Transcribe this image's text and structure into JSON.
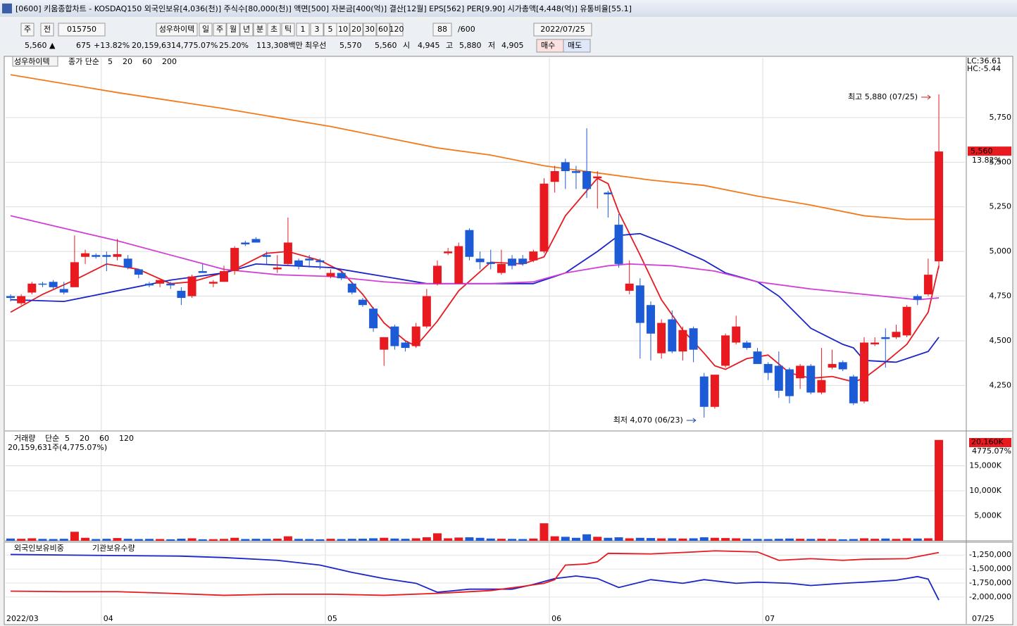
{
  "window": {
    "title": "[0600] 키움종합차트 - KOSDAQ150 외국인보유[4,036(천)] 주식수[80,000(천)] 액면[500] 자본금[400(억)] 결산[12월] EPS[562] PER[9.90] 시가총액[4,448(억)] 유통비율[55.1]",
    "toolbar": [
      "주",
      "전",
      "015750",
      "성우하이텍",
      "일",
      "주",
      "월",
      "년",
      "분",
      "초",
      "틱",
      "1",
      "3",
      "5",
      "10",
      "20",
      "30",
      "60",
      "120",
      "88",
      "/600",
      "2022/07/25"
    ],
    "info": [
      "5,560 ▲",
      "675",
      "+13.82%",
      "20,159,631",
      "4,775.07%",
      "25.20%",
      "113,308백만",
      "최우선",
      "5,570",
      "5,560",
      "시",
      "4,945",
      "고",
      "5,880",
      "저",
      "4,905",
      "매수",
      "매도"
    ]
  },
  "chart_data": [
    {
      "type": "candlestick",
      "stock": "성우하이텍",
      "ma_label": "종가 단순",
      "categories": [
        "2022/03",
        null,
        null,
        null,
        null,
        null,
        null,
        null,
        null,
        "04",
        null,
        null,
        null,
        null,
        null,
        null,
        null,
        null,
        null,
        null,
        null,
        null,
        null,
        null,
        null,
        null,
        null,
        null,
        null,
        null,
        "05",
        null,
        null,
        null,
        null,
        null,
        null,
        null,
        null,
        null,
        null,
        null,
        null,
        null,
        null,
        null,
        null,
        null,
        null,
        null,
        null,
        "06",
        null,
        null,
        null,
        null,
        null,
        null,
        null,
        null,
        null,
        null,
        null,
        null,
        null,
        null,
        null,
        null,
        null,
        null,
        null,
        "07",
        null,
        null,
        null,
        null,
        null,
        null,
        null,
        null,
        null,
        null,
        null,
        null,
        null,
        null,
        null,
        "07/25"
      ],
      "open": [
        4750,
        4710,
        4770,
        4820,
        4830,
        4790,
        4800,
        4970,
        4980,
        4980,
        4970,
        4960,
        4900,
        4820,
        4820,
        4820,
        4780,
        4750,
        4890,
        4820,
        4830,
        4890,
        5050,
        5070,
        4980,
        4900,
        4930,
        4950,
        4960,
        4950,
        4860,
        4880,
        4820,
        4730,
        4680,
        4450,
        4580,
        4490,
        4470,
        4580,
        4820,
        4990,
        4820,
        5120,
        4960,
        4940,
        4880,
        4960,
        4960,
        4950,
        5000,
        5390,
        5500,
        5450,
        5450,
        5410,
        5330,
        5150,
        4780,
        4810,
        4700,
        4430,
        4620,
        4440,
        4570,
        4300,
        4130,
        4360,
        4490,
        4490,
        4440,
        4370,
        4360,
        4340,
        4290,
        4360,
        4210,
        4350,
        4380,
        4300,
        4160,
        4480,
        4520,
        4520,
        4530,
        4750,
        4760,
        4945
      ],
      "high": [
        4760,
        4760,
        4830,
        4830,
        4840,
        4830,
        5090,
        5010,
        4990,
        5000,
        5070,
        4980,
        4900,
        4830,
        4840,
        4830,
        4800,
        4870,
        4930,
        4840,
        4920,
        5030,
        5060,
        5080,
        5000,
        4980,
        5190,
        4960,
        4980,
        4960,
        4900,
        4890,
        4830,
        4740,
        4690,
        4520,
        4590,
        4500,
        4600,
        4790,
        4950,
        5020,
        5050,
        5130,
        5000,
        5010,
        5010,
        4980,
        4980,
        5010,
        5410,
        5480,
        5520,
        5480,
        5690,
        5450,
        5340,
        5210,
        4950,
        4850,
        4720,
        4620,
        4670,
        4580,
        4580,
        4320,
        4310,
        4540,
        4640,
        4500,
        4460,
        4380,
        4440,
        4350,
        4370,
        4370,
        4460,
        4450,
        4390,
        4310,
        4520,
        4520,
        4570,
        4590,
        4700,
        4760,
        4960,
        5880
      ],
      "low": [
        4720,
        4700,
        4760,
        4800,
        4790,
        4760,
        4800,
        4930,
        4960,
        4890,
        4950,
        4900,
        4850,
        4800,
        4800,
        4790,
        4700,
        4740,
        4880,
        4800,
        4830,
        4870,
        5030,
        5050,
        4930,
        4880,
        4920,
        4900,
        4910,
        4900,
        4850,
        4840,
        4760,
        4690,
        4550,
        4360,
        4450,
        4440,
        4460,
        4570,
        4810,
        4980,
        4820,
        4950,
        4900,
        4900,
        4870,
        4900,
        4920,
        4940,
        4990,
        5330,
        5350,
        5350,
        5300,
        5240,
        5190,
        4910,
        4760,
        4400,
        4390,
        4400,
        4430,
        4390,
        4380,
        4070,
        4120,
        4350,
        4480,
        4450,
        4370,
        4280,
        4180,
        4150,
        4230,
        4200,
        4200,
        4340,
        4330,
        4140,
        4150,
        4470,
        4350,
        4510,
        4520,
        4700,
        4750,
        4905
      ],
      "close": [
        4740,
        4750,
        4820,
        4815,
        4800,
        4770,
        4940,
        4990,
        4970,
        4970,
        4985,
        4910,
        4870,
        4810,
        4840,
        4810,
        4740,
        4860,
        4880,
        4830,
        4890,
        5020,
        5040,
        5050,
        4970,
        4910,
        5050,
        4920,
        4950,
        4940,
        4880,
        4850,
        4770,
        4700,
        4570,
        4520,
        4470,
        4460,
        4580,
        4750,
        4920,
        5000,
        5030,
        4970,
        4940,
        4930,
        4930,
        4920,
        4930,
        5000,
        5380,
        5450,
        5450,
        5440,
        5350,
        5420,
        5320,
        4930,
        4820,
        4600,
        4540,
        4600,
        4440,
        4560,
        4450,
        4130,
        4310,
        4530,
        4580,
        4460,
        4370,
        4320,
        4220,
        4190,
        4360,
        4210,
        4280,
        4370,
        4340,
        4150,
        4490,
        4490,
        4510,
        4550,
        4690,
        4730,
        4870,
        5560
      ],
      "up_color": "#e8191f",
      "down_color": "#1d5bd6",
      "series": [
        {
          "name": "5",
          "color": "#e8191f",
          "x": [
            0,
            3,
            6,
            9,
            12,
            15,
            17,
            21,
            24,
            26,
            29,
            31,
            33,
            35,
            37,
            38,
            40,
            42,
            45,
            48,
            50,
            52,
            55,
            56,
            57,
            59,
            61,
            63,
            65,
            66,
            67,
            69,
            71,
            73,
            75,
            77,
            79,
            80,
            82,
            84,
            86,
            87
          ],
          "values": [
            4660,
            4760,
            4840,
            4930,
            4900,
            4820,
            4830,
            4900,
            4990,
            5000,
            4950,
            4890,
            4760,
            4600,
            4500,
            4470,
            4610,
            4780,
            4940,
            4930,
            4970,
            5200,
            5410,
            5380,
            5220,
            4980,
            4730,
            4560,
            4430,
            4360,
            4340,
            4400,
            4420,
            4320,
            4290,
            4300,
            4270,
            4290,
            4380,
            4480,
            4660,
            4920
          ]
        },
        {
          "name": "20",
          "color": "#1a24c8",
          "x": [
            0,
            5,
            10,
            15,
            20,
            23,
            30,
            35,
            39,
            45,
            49,
            52,
            55,
            57,
            59,
            62,
            65,
            67,
            70,
            72,
            75,
            78,
            79,
            80,
            83,
            86,
            87
          ],
          "values": [
            4730,
            4720,
            4780,
            4840,
            4880,
            4930,
            4910,
            4860,
            4820,
            4820,
            4820,
            4880,
            5000,
            5090,
            5100,
            5030,
            4950,
            4880,
            4830,
            4750,
            4570,
            4480,
            4460,
            4390,
            4380,
            4440,
            4520
          ]
        },
        {
          "name": "60",
          "color": "#d23fd6",
          "x": [
            0,
            10,
            20,
            25,
            30,
            35,
            38,
            45,
            49,
            52,
            56,
            58,
            62,
            66,
            70,
            75,
            80,
            85,
            87
          ],
          "values": [
            5200,
            5060,
            4900,
            4870,
            4860,
            4830,
            4820,
            4820,
            4830,
            4880,
            4920,
            4930,
            4920,
            4890,
            4830,
            4790,
            4760,
            4730,
            4740
          ]
        },
        {
          "name": "200",
          "color": "#f27a1a",
          "x": [
            0,
            10,
            20,
            30,
            40,
            45,
            50,
            55,
            60,
            65,
            70,
            75,
            80,
            84,
            87
          ],
          "values": [
            5990,
            5890,
            5800,
            5700,
            5580,
            5540,
            5480,
            5440,
            5400,
            5370,
            5310,
            5260,
            5200,
            5180,
            5180
          ]
        }
      ],
      "ylim": [
        3995,
        6085
      ],
      "yticks": [
        {
          "value": 4250,
          "label": "4,250"
        },
        {
          "value": 4500,
          "label": "4,500"
        },
        {
          "value": 4750,
          "label": "4,750"
        },
        {
          "value": 5000,
          "label": "5,000"
        },
        {
          "value": 5250,
          "label": "5,250"
        },
        {
          "value": 5500,
          "label": "5,500"
        },
        {
          "value": 5750,
          "label": "5,750"
        }
      ],
      "grid": true,
      "annotations": [
        {
          "text": "최고 5,880 (07/25)",
          "index": 87,
          "value": 5880
        },
        {
          "text": "최저 4,070 (06/23)",
          "index": 65,
          "value": 4070
        }
      ],
      "last_label": "5,560",
      "last_change": "13.82%",
      "lc": "LC:36.61",
      "hc": "HC:-5.44"
    },
    {
      "type": "bar",
      "title": "거래량",
      "legend": [
        "단순",
        "5",
        "20",
        "60",
        "120"
      ],
      "summary": "20,159,631주(4,775.07%)",
      "values": [
        450,
        400,
        500,
        380,
        350,
        400,
        1800,
        600,
        350,
        400,
        550,
        400,
        350,
        380,
        350,
        300,
        420,
        500,
        300,
        320,
        380,
        600,
        350,
        400,
        380,
        420,
        900,
        380,
        350,
        300,
        400,
        350,
        400,
        420,
        500,
        600,
        450,
        400,
        500,
        700,
        1500,
        500,
        650,
        700,
        600,
        450,
        400,
        380,
        350,
        450,
        3500,
        900,
        800,
        600,
        1300,
        800,
        600,
        700,
        500,
        600,
        550,
        480,
        500,
        450,
        500,
        700,
        600,
        550,
        500,
        400,
        380,
        350,
        400,
        450,
        400,
        380,
        400,
        350,
        300,
        350,
        500,
        400,
        450,
        380,
        500,
        450,
        500,
        20160
      ],
      "ylim": [
        0,
        21400
      ],
      "yticks": [
        {
          "value": 5000,
          "label": "5,000K"
        },
        {
          "value": 10000,
          "label": "10,000K"
        },
        {
          "value": 15000,
          "label": "15,000K"
        }
      ],
      "last_label": "20,160K",
      "last_change": "4775.07%"
    },
    {
      "type": "line",
      "series": [
        {
          "name": "외국인보유비중",
          "color": "#1a24c8",
          "x": [
            0,
            10,
            16,
            20,
            25,
            29,
            32,
            35,
            38,
            40,
            43,
            47,
            49,
            51,
            53,
            55,
            57,
            60,
            63,
            65,
            68,
            70,
            73,
            75,
            78,
            80,
            83,
            85,
            86,
            87
          ],
          "values": [
            -1240000,
            -1260000,
            -1270000,
            -1295000,
            -1345000,
            -1430000,
            -1560000,
            -1670000,
            -1755000,
            -1915000,
            -1860000,
            -1860000,
            -1775000,
            -1670000,
            -1625000,
            -1670000,
            -1830000,
            -1690000,
            -1755000,
            -1690000,
            -1755000,
            -1735000,
            -1755000,
            -1795000,
            -1755000,
            -1735000,
            -1700000,
            -1635000,
            -1680000,
            -2055000
          ]
        },
        {
          "name": "기관보유수량",
          "color": "#e8191f",
          "x": [
            0,
            5,
            10,
            15,
            20,
            25,
            30,
            35,
            40,
            42,
            45,
            48,
            50,
            51,
            52,
            54,
            55,
            56,
            60,
            64,
            66,
            70,
            72,
            75,
            78,
            80,
            84,
            87
          ],
          "values": [
            -1895000,
            -1905000,
            -1905000,
            -1935000,
            -1970000,
            -1950000,
            -1950000,
            -1970000,
            -1935000,
            -1915000,
            -1885000,
            -1810000,
            -1755000,
            -1690000,
            -1430000,
            -1410000,
            -1370000,
            -1220000,
            -1230000,
            -1195000,
            -1175000,
            -1195000,
            -1345000,
            -1315000,
            -1345000,
            -1325000,
            -1315000,
            -1205000
          ]
        }
      ],
      "ylim": [
        -2279000,
        -1046000
      ],
      "yticks": [
        {
          "value": -2000000,
          "label": "-2,000,000"
        },
        {
          "value": -1750000,
          "label": "-1,750,000"
        },
        {
          "value": -1500000,
          "label": "-1,500,000"
        },
        {
          "value": -1250000,
          "label": "-1,250,000"
        }
      ]
    }
  ]
}
